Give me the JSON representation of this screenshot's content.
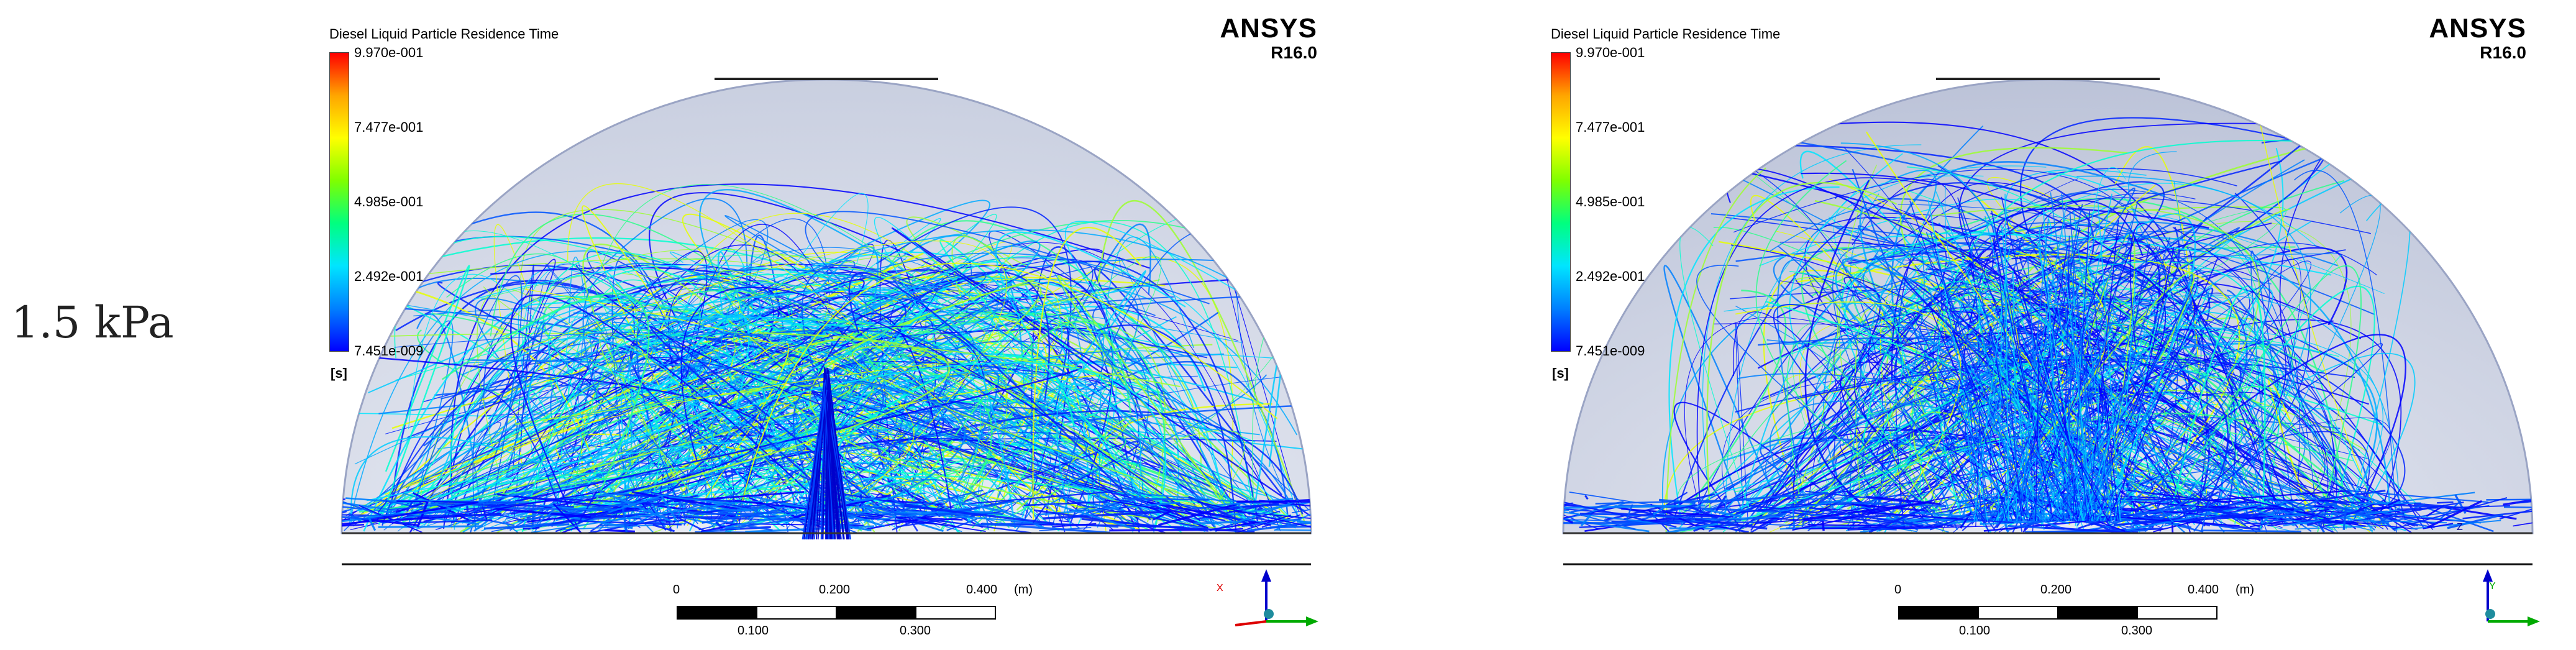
{
  "row_label": "1.5 kPa",
  "panels": [
    {
      "colorbar": {
        "title": "Diesel Liquid Particle Residence Time",
        "ticks": [
          "9.970e-001",
          "7.477e-001",
          "4.985e-001",
          "2.492e-001",
          "7.451e-009"
        ],
        "unit": "[s]"
      },
      "brand": {
        "name": "ANSYS",
        "version": "R16.0"
      },
      "scale": {
        "top_labels": [
          "0",
          "0.200",
          "0.400",
          "(m)"
        ],
        "bottom_labels": [
          "0.100",
          "0.300"
        ]
      },
      "axes": {
        "vertical": "",
        "horizontal": "X"
      }
    },
    {
      "colorbar": {
        "title": "Diesel Liquid Particle Residence Time",
        "ticks": [
          "9.970e-001",
          "7.477e-001",
          "4.985e-001",
          "2.492e-001",
          "7.451e-009"
        ],
        "unit": "[s]"
      },
      "brand": {
        "name": "ANSYS",
        "version": "R16.0"
      },
      "scale": {
        "top_labels": [
          "0",
          "0.200",
          "0.400",
          "(m)"
        ],
        "bottom_labels": [
          "0.100",
          "0.300"
        ]
      },
      "axes": {
        "vertical": "Z",
        "horizontal": "Y"
      }
    }
  ],
  "colors": {
    "ramp": [
      "#ff0000",
      "#ffa500",
      "#ffff00",
      "#7fff00",
      "#00ff7f",
      "#00e5ff",
      "#0080ff",
      "#0000ff"
    ],
    "dome_fill": "#d6dae6",
    "dome_edge": "#9aa4c4"
  }
}
